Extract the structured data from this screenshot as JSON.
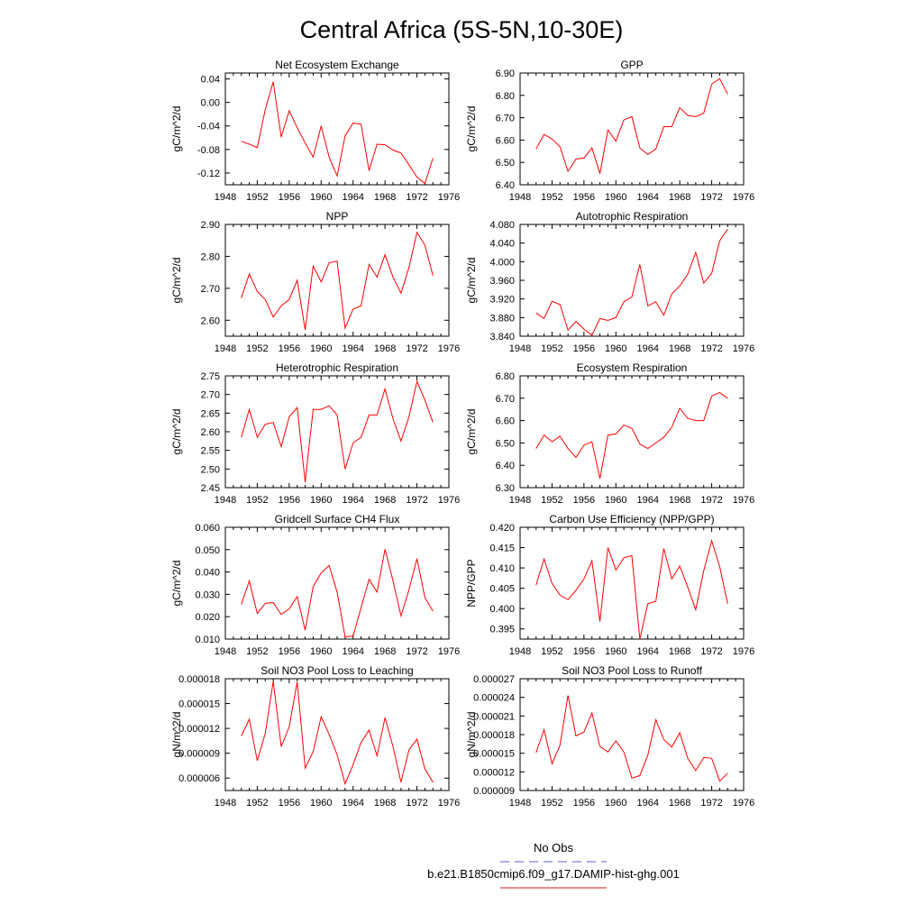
{
  "figure": {
    "title": "Central Africa (5S-5N,10-30E)"
  },
  "legend": {
    "items": [
      {
        "label": "No Obs",
        "color": "#5b5bd6",
        "style": "dashed"
      },
      {
        "label": "b.e21.B1850cmip6.f09_g17.DAMIP-hist-ghg.001",
        "color": "#e31a1c",
        "style": "solid"
      }
    ]
  },
  "colors": {
    "series": "#ff0000",
    "axis": "#000000"
  },
  "chart_data": [
    {
      "type": "line",
      "title": "Net Ecosystem Exchange",
      "ylabel": "gC/m^2/d",
      "xlim": [
        1948,
        1976
      ],
      "xticks": [
        "1948",
        "1952",
        "1956",
        "1960",
        "1964",
        "1968",
        "1972",
        "1976"
      ],
      "ylim": [
        -0.14,
        0.05
      ],
      "yticks": [
        "0.04",
        "0.00",
        "-0.04",
        "-0.08",
        "-0.12"
      ],
      "ytick_values": [
        0.04,
        0.0,
        -0.04,
        -0.08,
        -0.12
      ],
      "x": [
        1950,
        1951,
        1952,
        1953,
        1954,
        1955,
        1956,
        1957,
        1958,
        1959,
        1960,
        1961,
        1962,
        1963,
        1964,
        1965,
        1966,
        1967,
        1968,
        1969,
        1970,
        1971,
        1972,
        1973,
        1974
      ],
      "values": [
        -0.066,
        -0.071,
        -0.077,
        -0.012,
        0.035,
        -0.059,
        -0.014,
        -0.043,
        -0.069,
        -0.093,
        -0.04,
        -0.093,
        -0.125,
        -0.057,
        -0.035,
        -0.037,
        -0.116,
        -0.071,
        -0.072,
        -0.081,
        -0.086,
        -0.106,
        -0.127,
        -0.138,
        -0.095
      ]
    },
    {
      "type": "line",
      "title": "GPP",
      "ylabel": "gC/m^2/d",
      "xlim": [
        1948,
        1976
      ],
      "xticks": [
        "1948",
        "1952",
        "1956",
        "1960",
        "1964",
        "1968",
        "1972",
        "1976"
      ],
      "ylim": [
        6.4,
        6.9
      ],
      "yticks": [
        "6.90",
        "6.80",
        "6.70",
        "6.60",
        "6.50",
        "6.40"
      ],
      "ytick_values": [
        6.9,
        6.8,
        6.7,
        6.6,
        6.5,
        6.4
      ],
      "x": [
        1950,
        1951,
        1952,
        1953,
        1954,
        1955,
        1956,
        1957,
        1958,
        1959,
        1960,
        1961,
        1962,
        1963,
        1964,
        1965,
        1966,
        1967,
        1968,
        1969,
        1970,
        1971,
        1972,
        1973,
        1974
      ],
      "values": [
        6.56,
        6.625,
        6.605,
        6.57,
        6.46,
        6.515,
        6.52,
        6.565,
        6.45,
        6.645,
        6.595,
        6.69,
        6.705,
        6.565,
        6.535,
        6.56,
        6.66,
        6.66,
        6.745,
        6.71,
        6.705,
        6.72,
        6.85,
        6.875,
        6.805
      ]
    },
    {
      "type": "line",
      "title": "NPP",
      "ylabel": "gC/m^2/d",
      "xlim": [
        1948,
        1976
      ],
      "xticks": [
        "1948",
        "1952",
        "1956",
        "1960",
        "1964",
        "1968",
        "1972",
        "1976"
      ],
      "ylim": [
        2.55,
        2.9
      ],
      "yticks": [
        "2.90",
        "2.80",
        "2.70",
        "2.60"
      ],
      "ytick_values": [
        2.9,
        2.8,
        2.7,
        2.6
      ],
      "x": [
        1950,
        1951,
        1952,
        1953,
        1954,
        1955,
        1956,
        1957,
        1958,
        1959,
        1960,
        1961,
        1962,
        1963,
        1964,
        1965,
        1966,
        1967,
        1968,
        1969,
        1970,
        1971,
        1972,
        1973,
        1974
      ],
      "values": [
        2.67,
        2.745,
        2.69,
        2.665,
        2.61,
        2.645,
        2.665,
        2.725,
        2.57,
        2.77,
        2.72,
        2.78,
        2.785,
        2.575,
        2.635,
        2.645,
        2.775,
        2.735,
        2.805,
        2.735,
        2.685,
        2.765,
        2.875,
        2.835,
        2.74
      ]
    },
    {
      "type": "line",
      "title": "Autotrophic Respiration",
      "ylabel": "gC/m^2/d",
      "xlim": [
        1948,
        1976
      ],
      "xticks": [
        "1948",
        "1952",
        "1956",
        "1960",
        "1964",
        "1968",
        "1972",
        "1976"
      ],
      "ylim": [
        3.84,
        4.08
      ],
      "yticks": [
        "4.080",
        "4.040",
        "4.000",
        "3.960",
        "3.920",
        "3.880",
        "3.840"
      ],
      "ytick_values": [
        4.08,
        4.04,
        4.0,
        3.96,
        3.92,
        3.88,
        3.84
      ],
      "x": [
        1950,
        1951,
        1952,
        1953,
        1954,
        1955,
        1956,
        1957,
        1958,
        1959,
        1960,
        1961,
        1962,
        1963,
        1964,
        1965,
        1966,
        1967,
        1968,
        1969,
        1970,
        1971,
        1972,
        1973,
        1974
      ],
      "values": [
        3.89,
        3.878,
        3.915,
        3.908,
        3.853,
        3.872,
        3.855,
        3.842,
        3.878,
        3.874,
        3.88,
        3.914,
        3.924,
        3.994,
        3.905,
        3.914,
        3.885,
        3.931,
        3.948,
        3.973,
        4.02,
        3.954,
        3.975,
        4.045,
        4.07
      ]
    },
    {
      "type": "line",
      "title": "Heterotrophic Respiration",
      "ylabel": "gC/m^2/d",
      "xlim": [
        1948,
        1976
      ],
      "xticks": [
        "1948",
        "1952",
        "1956",
        "1960",
        "1964",
        "1968",
        "1972",
        "1976"
      ],
      "ylim": [
        2.45,
        2.75
      ],
      "yticks": [
        "2.75",
        "2.70",
        "2.65",
        "2.60",
        "2.55",
        "2.50",
        "2.45"
      ],
      "ytick_values": [
        2.75,
        2.7,
        2.65,
        2.6,
        2.55,
        2.5,
        2.45
      ],
      "x": [
        1950,
        1951,
        1952,
        1953,
        1954,
        1955,
        1956,
        1957,
        1958,
        1959,
        1960,
        1961,
        1962,
        1963,
        1964,
        1965,
        1966,
        1967,
        1968,
        1969,
        1970,
        1971,
        1972,
        1973,
        1974
      ],
      "values": [
        2.585,
        2.66,
        2.585,
        2.62,
        2.625,
        2.56,
        2.64,
        2.665,
        2.465,
        2.66,
        2.66,
        2.67,
        2.645,
        2.5,
        2.57,
        2.585,
        2.645,
        2.645,
        2.715,
        2.635,
        2.575,
        2.64,
        2.735,
        2.685,
        2.625
      ]
    },
    {
      "type": "line",
      "title": "Ecosystem Respiration",
      "ylabel": "gC/m^2/d",
      "xlim": [
        1948,
        1976
      ],
      "xticks": [
        "1948",
        "1952",
        "1956",
        "1960",
        "1964",
        "1968",
        "1972",
        "1976"
      ],
      "ylim": [
        6.3,
        6.8
      ],
      "yticks": [
        "6.80",
        "6.70",
        "6.60",
        "6.50",
        "6.40",
        "6.30"
      ],
      "ytick_values": [
        6.8,
        6.7,
        6.6,
        6.5,
        6.4,
        6.3
      ],
      "x": [
        1950,
        1951,
        1952,
        1953,
        1954,
        1955,
        1956,
        1957,
        1958,
        1959,
        1960,
        1961,
        1962,
        1963,
        1964,
        1965,
        1966,
        1967,
        1968,
        1969,
        1970,
        1971,
        1972,
        1973,
        1974
      ],
      "values": [
        6.475,
        6.535,
        6.505,
        6.53,
        6.475,
        6.435,
        6.49,
        6.505,
        6.34,
        6.535,
        6.54,
        6.58,
        6.565,
        6.495,
        6.475,
        6.5,
        6.525,
        6.57,
        6.655,
        6.61,
        6.6,
        6.6,
        6.71,
        6.725,
        6.7
      ]
    },
    {
      "type": "line",
      "title": "Gridcell Surface CH4 Flux",
      "ylabel": "gC/m^2/d",
      "xlim": [
        1948,
        1976
      ],
      "xticks": [
        "1948",
        "1952",
        "1956",
        "1960",
        "1964",
        "1968",
        "1972",
        "1976"
      ],
      "ylim": [
        0.01,
        0.06
      ],
      "yticks": [
        "0.060",
        "0.050",
        "0.040",
        "0.030",
        "0.020",
        "0.010"
      ],
      "ytick_values": [
        0.06,
        0.05,
        0.04,
        0.03,
        0.02,
        0.01
      ],
      "x": [
        1950,
        1951,
        1952,
        1953,
        1954,
        1955,
        1956,
        1957,
        1958,
        1959,
        1960,
        1961,
        1962,
        1963,
        1964,
        1965,
        1966,
        1967,
        1968,
        1969,
        1970,
        1971,
        1972,
        1973,
        1974
      ],
      "values": [
        0.0255,
        0.036,
        0.0215,
        0.026,
        0.0263,
        0.021,
        0.0235,
        0.029,
        0.014,
        0.0335,
        0.0395,
        0.043,
        0.031,
        0.011,
        0.0113,
        0.024,
        0.0367,
        0.031,
        0.0502,
        0.036,
        0.0204,
        0.032,
        0.046,
        0.0285,
        0.0225
      ]
    },
    {
      "type": "line",
      "title": "Carbon Use Efficiency (NPP/GPP)",
      "ylabel": "NPP/GPP",
      "xlim": [
        1948,
        1976
      ],
      "xticks": [
        "1948",
        "1952",
        "1956",
        "1960",
        "1964",
        "1968",
        "1972",
        "1976"
      ],
      "ylim": [
        0.3925,
        0.42
      ],
      "yticks": [
        "0.420",
        "0.415",
        "0.410",
        "0.405",
        "0.400",
        "0.395"
      ],
      "ytick_values": [
        0.42,
        0.415,
        0.41,
        0.405,
        0.4,
        0.395
      ],
      "x": [
        1950,
        1951,
        1952,
        1953,
        1954,
        1955,
        1956,
        1957,
        1958,
        1959,
        1960,
        1961,
        1962,
        1963,
        1964,
        1965,
        1966,
        1967,
        1968,
        1969,
        1970,
        1971,
        1972,
        1973,
        1974
      ],
      "values": [
        0.4058,
        0.4122,
        0.4062,
        0.4033,
        0.4022,
        0.4045,
        0.4073,
        0.4118,
        0.3968,
        0.415,
        0.4095,
        0.4125,
        0.413,
        0.3925,
        0.4012,
        0.4018,
        0.4148,
        0.4073,
        0.4105,
        0.4053,
        0.3997,
        0.4093,
        0.4167,
        0.4103,
        0.4012
      ]
    },
    {
      "type": "line",
      "title": "Soil NO3 Pool Loss to Leaching",
      "ylabel": "gN/m^2/d",
      "xlim": [
        1948,
        1976
      ],
      "xticks": [
        "1948",
        "1952",
        "1956",
        "1960",
        "1964",
        "1968",
        "1972",
        "1976"
      ],
      "ylim": [
        4.5e-06,
        1.8e-05
      ],
      "yticks": [
        "0.000018",
        "0.000015",
        "0.000012",
        "0.000009",
        "0.000006"
      ],
      "ytick_values": [
        1.8e-05,
        1.5e-05,
        1.2e-05,
        9e-06,
        6e-06
      ],
      "x": [
        1950,
        1951,
        1952,
        1953,
        1954,
        1955,
        1956,
        1957,
        1958,
        1959,
        1960,
        1961,
        1962,
        1963,
        1964,
        1965,
        1966,
        1967,
        1968,
        1969,
        1970,
        1971,
        1972,
        1973,
        1974
      ],
      "values": [
        1.11e-05,
        1.31e-05,
        8.1e-06,
        1.14e-05,
        1.77e-05,
        9.8e-06,
        1.22e-05,
        1.76e-05,
        7.2e-06,
        9.2e-06,
        1.34e-05,
        1.13e-05,
        8.8e-06,
        5.3e-06,
        7.6e-06,
        1.03e-05,
        1.18e-05,
        8.7e-06,
        1.33e-05,
        9.8e-06,
        5.5e-06,
        9.4e-06,
        1.07e-05,
        7.1e-06,
        5.5e-06
      ]
    },
    {
      "type": "line",
      "title": "Soil NO3 Pool Loss to Runoff",
      "ylabel": "gN/m^2/d",
      "xlim": [
        1948,
        1976
      ],
      "xticks": [
        "1948",
        "1952",
        "1956",
        "1960",
        "1964",
        "1968",
        "1972",
        "1976"
      ],
      "ylim": [
        9e-06,
        2.7e-05
      ],
      "yticks": [
        "0.000027",
        "0.000024",
        "0.000021",
        "0.000018",
        "0.000015",
        "0.000012",
        "0.000009"
      ],
      "ytick_values": [
        2.7e-05,
        2.4e-05,
        2.1e-05,
        1.8e-05,
        1.5e-05,
        1.2e-05,
        9e-06
      ],
      "x": [
        1950,
        1951,
        1952,
        1953,
        1954,
        1955,
        1956,
        1957,
        1958,
        1959,
        1960,
        1961,
        1962,
        1963,
        1964,
        1965,
        1966,
        1967,
        1968,
        1969,
        1970,
        1971,
        1972,
        1973,
        1974
      ],
      "values": [
        1.51e-05,
        1.88e-05,
        1.33e-05,
        1.63e-05,
        2.43e-05,
        1.78e-05,
        1.84e-05,
        2.15e-05,
        1.61e-05,
        1.52e-05,
        1.7e-05,
        1.52e-05,
        1.1e-05,
        1.14e-05,
        1.47e-05,
        2.04e-05,
        1.72e-05,
        1.6e-05,
        1.83e-05,
        1.42e-05,
        1.22e-05,
        1.43e-05,
        1.42e-05,
        1.05e-05,
        1.18e-05
      ]
    }
  ]
}
